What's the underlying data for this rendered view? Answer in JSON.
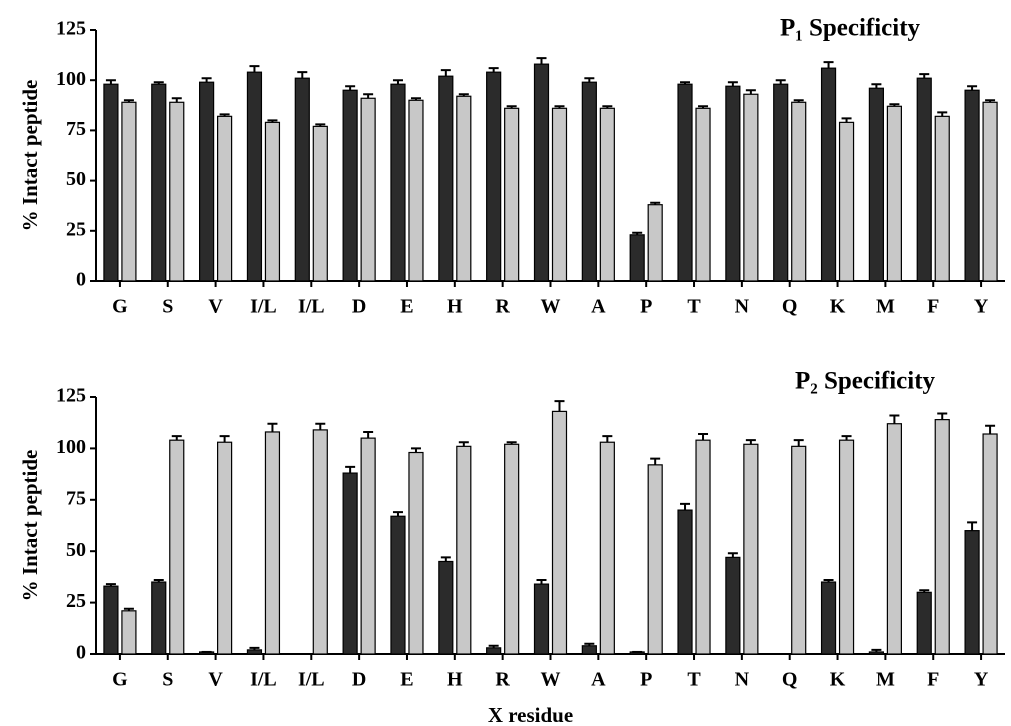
{
  "chart_data": [
    {
      "type": "bar",
      "title": "P₁ Specificity",
      "ylabel": "% Intact peptide",
      "categories": [
        "G",
        "S",
        "V",
        "I/L",
        "I/L",
        "D",
        "E",
        "H",
        "R",
        "W",
        "A",
        "P",
        "T",
        "N",
        "Q",
        "K",
        "M",
        "F",
        "Y"
      ],
      "series": [
        {
          "color": "#2b2b2b",
          "values": [
            98,
            98,
            99,
            104,
            101,
            95,
            98,
            102,
            104,
            108,
            99,
            23,
            98,
            97,
            98,
            106,
            96,
            101,
            95
          ],
          "errors": [
            2,
            1,
            2,
            3,
            3,
            2,
            2,
            3,
            2,
            3,
            2,
            1,
            1,
            2,
            2,
            3,
            2,
            2,
            2
          ]
        },
        {
          "color": "#c8c8c8",
          "values": [
            89,
            89,
            82,
            79,
            77,
            91,
            90,
            92,
            86,
            86,
            86,
            38,
            86,
            93,
            89,
            79,
            87,
            82,
            89
          ],
          "errors": [
            1,
            2,
            1,
            1,
            1,
            2,
            1,
            1,
            1,
            1,
            1,
            1,
            1,
            2,
            1,
            2,
            1,
            2,
            1
          ]
        }
      ],
      "ylim": [
        0,
        125
      ],
      "yticks": [
        0,
        25,
        50,
        75,
        100,
        125
      ]
    },
    {
      "type": "bar",
      "title": "P₂ Specificity",
      "ylabel": "% Intact peptide",
      "xlabel": "X residue",
      "categories": [
        "G",
        "S",
        "V",
        "I/L",
        "I/L",
        "D",
        "E",
        "H",
        "R",
        "W",
        "A",
        "P",
        "T",
        "N",
        "Q",
        "K",
        "M",
        "F",
        "Y"
      ],
      "series": [
        {
          "color": "#2b2b2b",
          "values": [
            33,
            35,
            1,
            2,
            0,
            88,
            67,
            45,
            3,
            34,
            4,
            1,
            70,
            47,
            0,
            35,
            1,
            30,
            60
          ],
          "errors": [
            1,
            1,
            0,
            1,
            0,
            3,
            2,
            2,
            1,
            2,
            1,
            0,
            3,
            2,
            0,
            1,
            1,
            1,
            4
          ]
        },
        {
          "color": "#c8c8c8",
          "values": [
            21,
            104,
            103,
            108,
            109,
            105,
            98,
            101,
            102,
            118,
            103,
            92,
            104,
            102,
            101,
            104,
            112,
            114,
            107
          ],
          "errors": [
            1,
            2,
            3,
            4,
            3,
            3,
            2,
            2,
            1,
            5,
            3,
            3,
            3,
            2,
            3,
            2,
            4,
            3,
            4
          ]
        }
      ],
      "ylim": [
        0,
        125
      ],
      "yticks": [
        0,
        25,
        50,
        75,
        100,
        125
      ]
    }
  ]
}
